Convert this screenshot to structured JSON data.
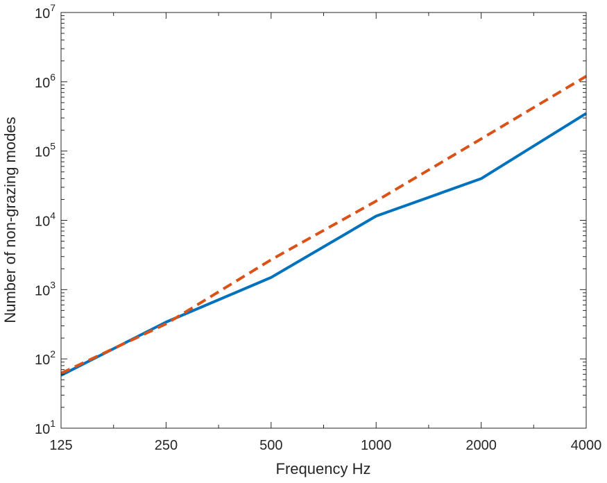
{
  "chart_data": {
    "type": "line",
    "title": "",
    "xlabel": "Frequency Hz",
    "ylabel": "Number of non-grazing modes",
    "x_scale": "log2",
    "y_scale": "log10",
    "xlim": [
      125,
      4000
    ],
    "ylim": [
      10,
      10000000
    ],
    "x_ticks": [
      125,
      250,
      500,
      1000,
      2000,
      4000
    ],
    "x_tick_labels": [
      "125",
      "250",
      "500",
      "1000",
      "2000",
      "4000"
    ],
    "y_tick_labels": [
      {
        "base": "10",
        "exp": "1"
      },
      {
        "base": "10",
        "exp": "2"
      },
      {
        "base": "10",
        "exp": "3"
      },
      {
        "base": "10",
        "exp": "4"
      },
      {
        "base": "10",
        "exp": "5"
      },
      {
        "base": "10",
        "exp": "6"
      },
      {
        "base": "10",
        "exp": "7"
      }
    ],
    "x": [
      125,
      250,
      500,
      1000,
      2000,
      4000
    ],
    "series": [
      {
        "style": "solid",
        "color": "#0072BD",
        "values": [
          58,
          340,
          1500,
          11500,
          40000,
          350000
        ]
      },
      {
        "style": "dashed",
        "color": "#D95319",
        "values": [
          62,
          320,
          2700,
          19000,
          150000,
          1200000
        ]
      }
    ],
    "grid": false,
    "legend": "none"
  }
}
